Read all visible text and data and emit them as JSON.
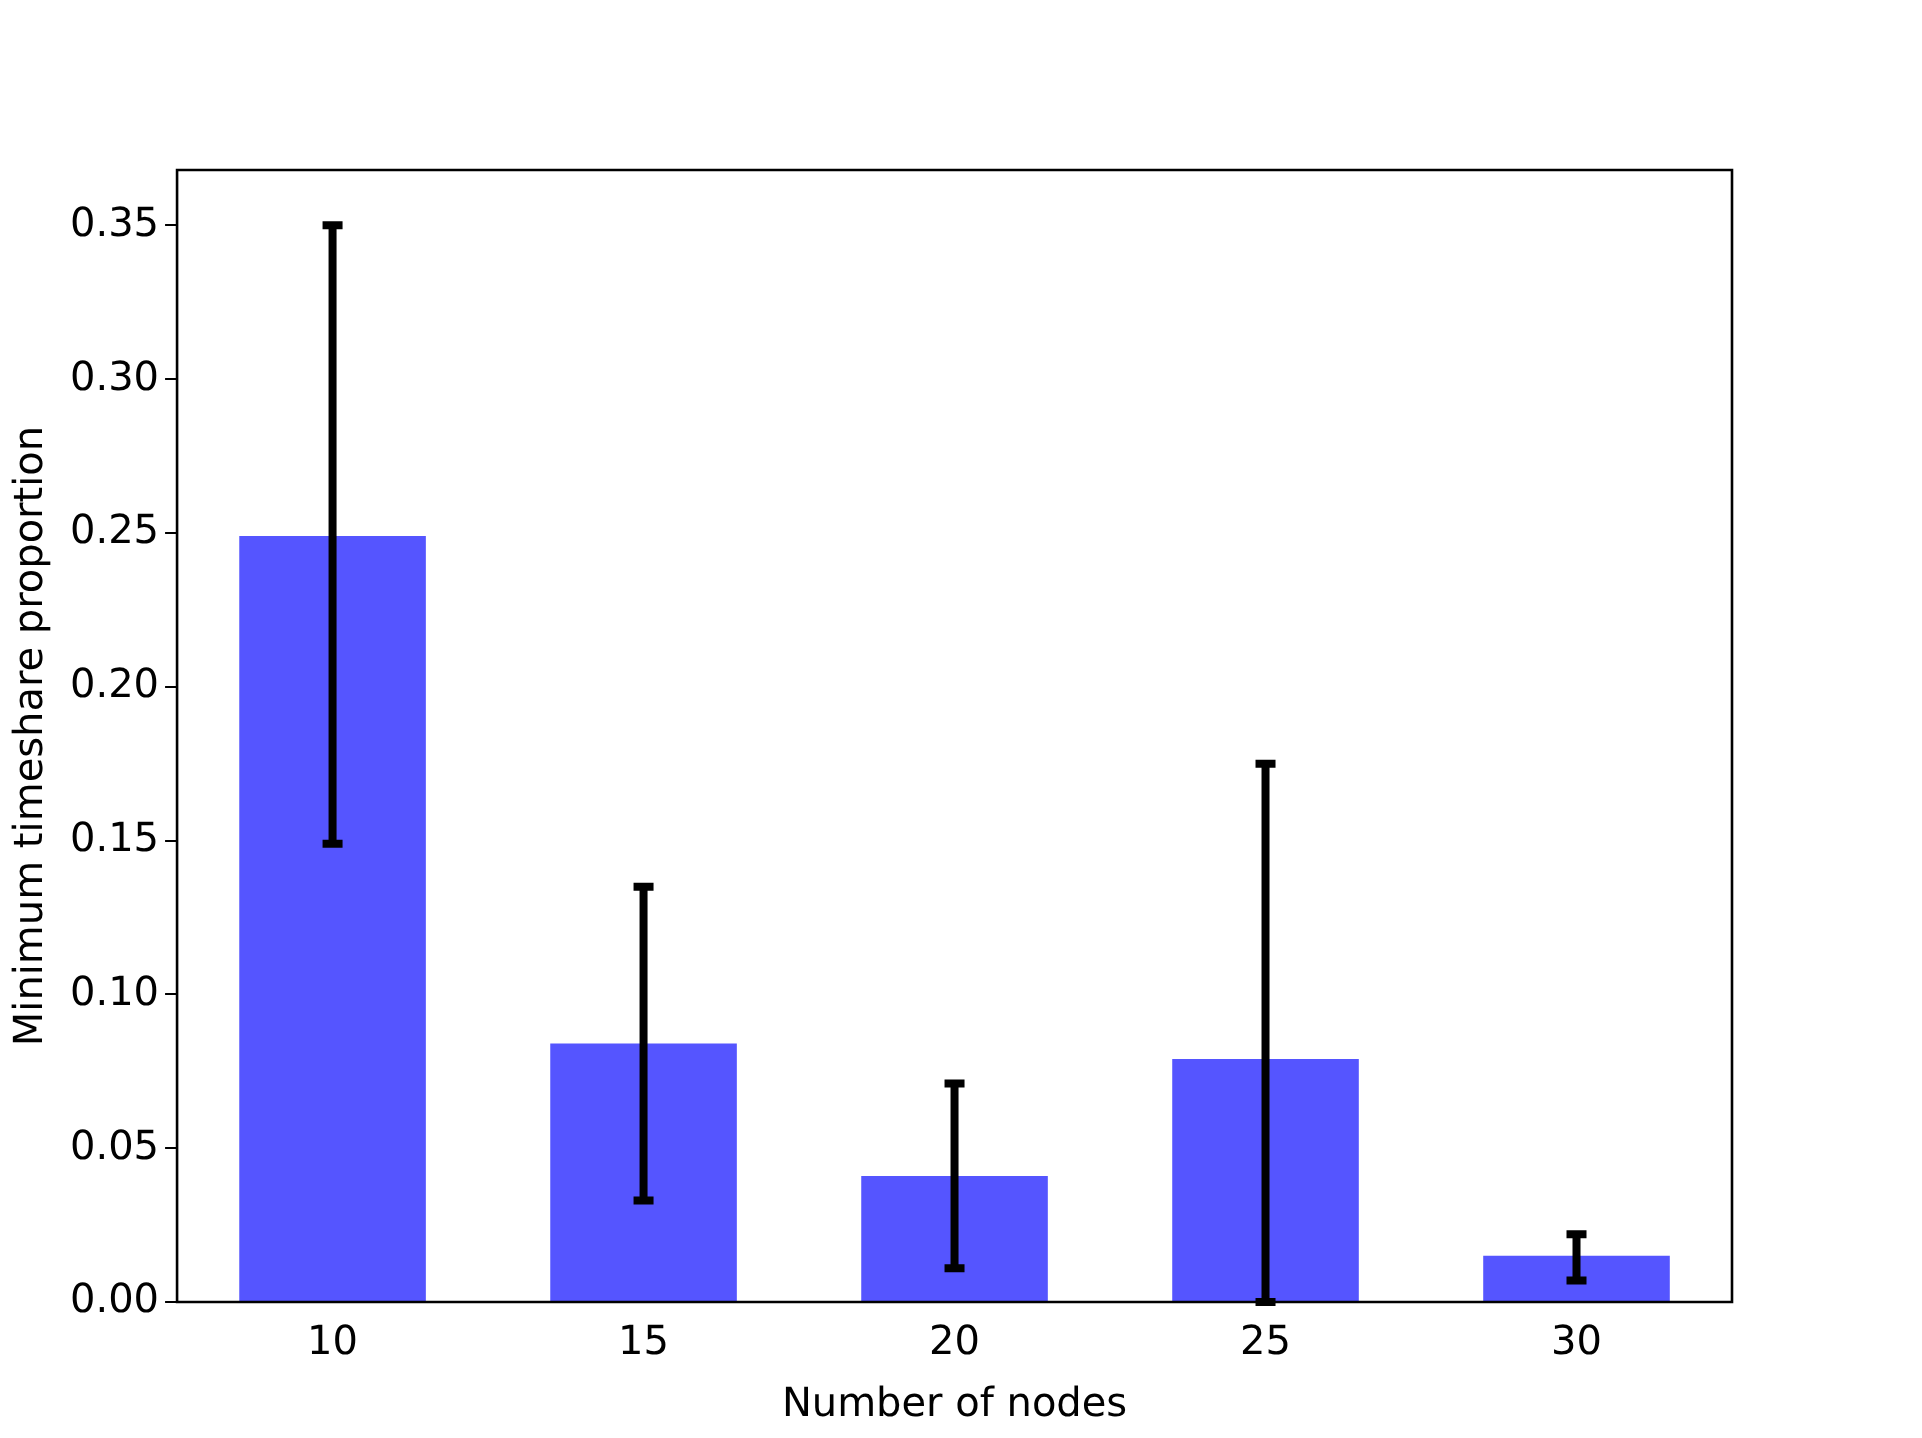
{
  "chart_data": {
    "type": "bar",
    "xlabel": "Number of nodes",
    "ylabel": "Minimum timeshare proportion",
    "categories": [
      "10",
      "15",
      "20",
      "25",
      "30"
    ],
    "values": [
      0.249,
      0.084,
      0.041,
      0.079,
      0.015
    ],
    "errors": [
      [
        0.149,
        0.35
      ],
      [
        0.033,
        0.135
      ],
      [
        0.011,
        0.071
      ],
      [
        0,
        0.175
      ],
      [
        0.007,
        0.022
      ]
    ],
    "color": "#5555ff",
    "ylim": [
      0,
      0.368
    ],
    "yticks": [
      {
        "value": 0,
        "label": "0.00"
      },
      {
        "value": 0.05,
        "label": "0.05"
      },
      {
        "value": 0.1,
        "label": "0.10"
      },
      {
        "value": 0.15,
        "label": "0.15"
      },
      {
        "value": 0.2,
        "label": "0.20"
      },
      {
        "value": 0.25,
        "label": "0.25"
      },
      {
        "value": 0.3,
        "label": "0.30"
      },
      {
        "value": 0.35,
        "label": "0.35"
      }
    ],
    "grid": false,
    "legend": false
  }
}
